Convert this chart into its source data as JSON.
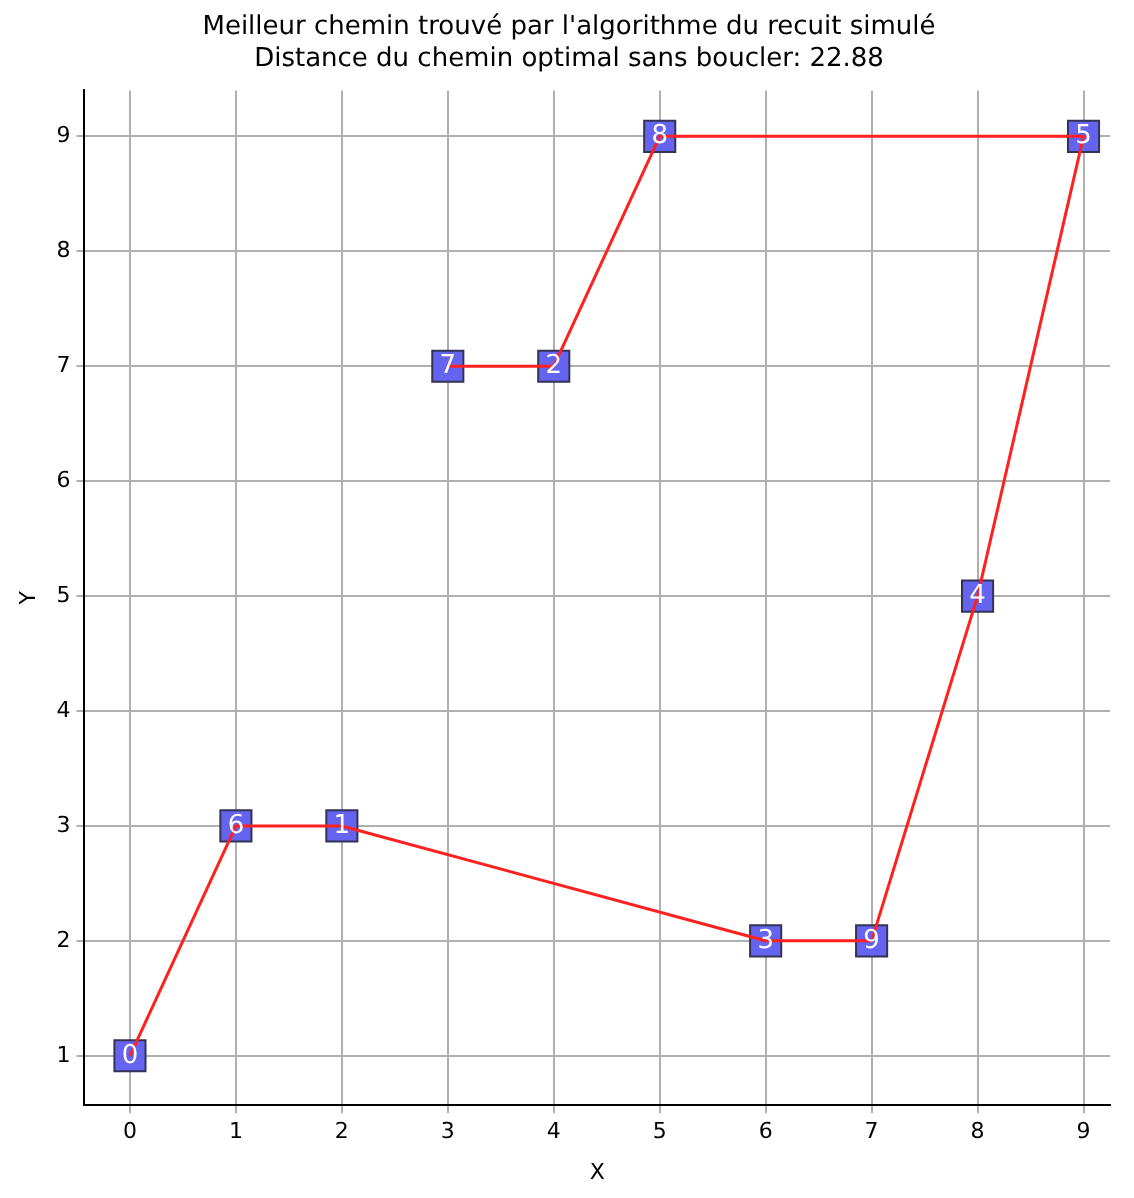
{
  "chart_data": {
    "type": "line",
    "title": "Meilleur chemin trouvé par l'algorithme du recuit simulé",
    "subtitle": "Distance du chemin optimal sans boucler: 22.88",
    "xlabel": "X",
    "ylabel": "Y",
    "series": [
      {
        "color": "#ff2020",
        "marker": "none",
        "x": [
          0,
          1,
          2,
          6,
          7,
          8,
          9,
          5,
          4,
          3
        ],
        "values": [
          1,
          3,
          3,
          2,
          2,
          5,
          9,
          9,
          7,
          7
        ]
      },
      {
        "type": "scatter",
        "color": "#6464f0",
        "marker": "square",
        "x": [
          0,
          1,
          2,
          6,
          7,
          8,
          9,
          5,
          4,
          3
        ],
        "values": [
          1,
          3,
          3,
          2,
          2,
          5,
          9,
          9,
          7,
          7
        ]
      }
    ],
    "annotations": [
      {
        "text": "0",
        "x": 0,
        "y": 1
      },
      {
        "text": "6",
        "x": 1,
        "y": 3
      },
      {
        "text": "1",
        "x": 2,
        "y": 3
      },
      {
        "text": "3",
        "x": 6,
        "y": 2
      },
      {
        "text": "9",
        "x": 7,
        "y": 2
      },
      {
        "text": "4",
        "x": 8,
        "y": 5
      },
      {
        "text": "5",
        "x": 9,
        "y": 9
      },
      {
        "text": "8",
        "x": 5,
        "y": 9
      },
      {
        "text": "2",
        "x": 4,
        "y": 7
      },
      {
        "text": "7",
        "x": 3,
        "y": 7
      }
    ],
    "xlim": [
      -0.43,
      9.25
    ],
    "ylim": [
      0.57,
      9.4
    ],
    "xticks": [
      0,
      1,
      2,
      3,
      4,
      5,
      6,
      7,
      8,
      9
    ],
    "yticks": [
      1,
      2,
      3,
      4,
      5,
      6,
      7,
      8,
      9
    ],
    "grid": true
  }
}
